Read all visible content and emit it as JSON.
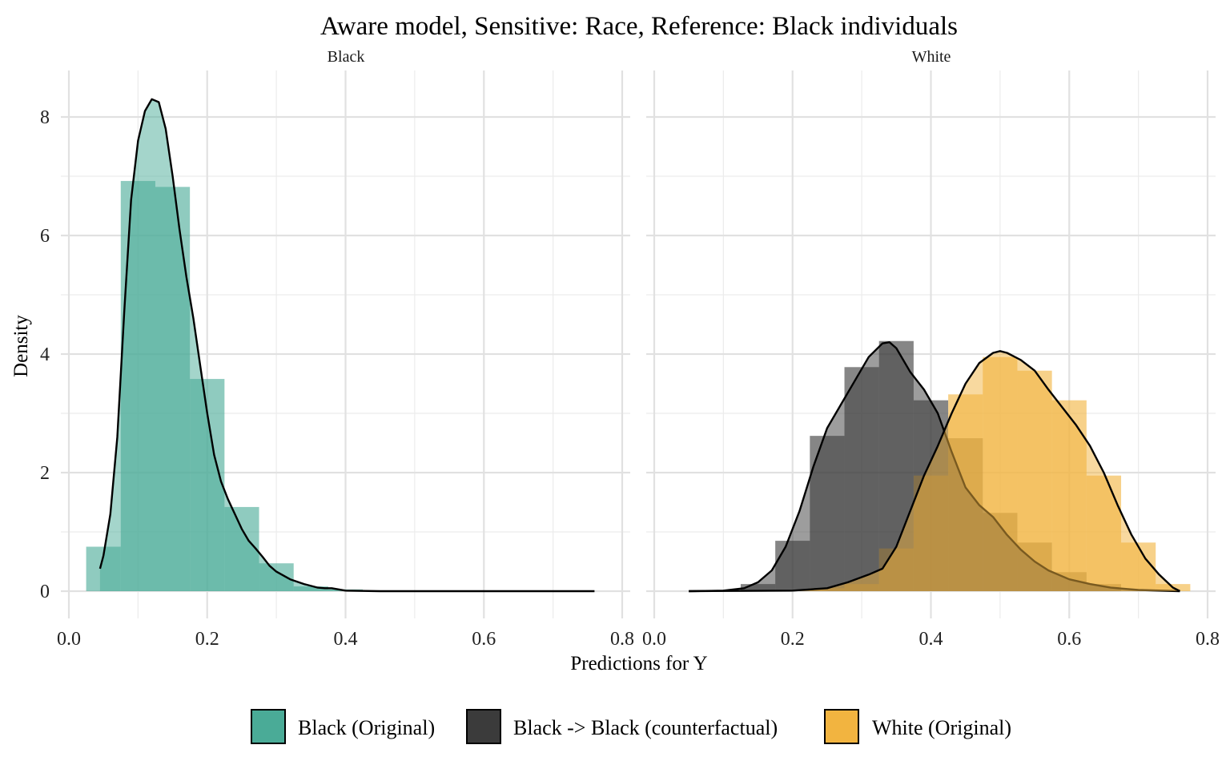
{
  "chart_data": {
    "type": "histogram-density",
    "title": "Aware model, Sensitive: Race, Reference: Black individuals",
    "xlabel": "Predictions for Y",
    "ylabel": "Density",
    "xlim": [
      0.0,
      0.8
    ],
    "ylim": [
      0,
      8.4
    ],
    "x_ticks": [
      0.0,
      0.2,
      0.4,
      0.6,
      0.8
    ],
    "x_tick_labels": [
      "0.0",
      "0.2",
      "0.4",
      "0.6",
      "0.8"
    ],
    "y_ticks": [
      0,
      2,
      4,
      6,
      8
    ],
    "y_tick_labels": [
      "0",
      "2",
      "4",
      "6",
      "8"
    ],
    "grid": true,
    "legend_position": "bottom",
    "bin_width": 0.05,
    "legend": [
      {
        "key": "black_orig",
        "label": "Black (Original)",
        "color": "#4aab97"
      },
      {
        "key": "black_cf",
        "label": "Black -> Black (counterfactual)",
        "color": "#3b3b3b"
      },
      {
        "key": "white_orig",
        "label": "White (Original)",
        "color": "#f2b440"
      }
    ],
    "panels": [
      {
        "name": "Black",
        "series": [
          {
            "key": "black_orig",
            "color": "#4aab97",
            "hist_x_starts": [
              0.025,
              0.075,
              0.125,
              0.175,
              0.225,
              0.275,
              0.325,
              0.375
            ],
            "hist_heights": [
              0.75,
              6.92,
              6.82,
              3.58,
              1.42,
              0.47,
              0.08,
              0.03
            ],
            "density_x": [
              0.045,
              0.05,
              0.06,
              0.07,
              0.08,
              0.09,
              0.1,
              0.11,
              0.12,
              0.13,
              0.14,
              0.15,
              0.16,
              0.17,
              0.18,
              0.19,
              0.2,
              0.21,
              0.22,
              0.23,
              0.24,
              0.25,
              0.26,
              0.27,
              0.28,
              0.29,
              0.3,
              0.32,
              0.34,
              0.36,
              0.37,
              0.38,
              0.4,
              0.45,
              0.5,
              0.6,
              0.7,
              0.76
            ],
            "density_y": [
              0.38,
              0.6,
              1.3,
              2.6,
              4.7,
              6.6,
              7.6,
              8.1,
              8.3,
              8.25,
              7.8,
              7.0,
              6.1,
              5.3,
              4.6,
              3.8,
              3.0,
              2.3,
              1.85,
              1.55,
              1.3,
              1.05,
              0.85,
              0.72,
              0.58,
              0.43,
              0.33,
              0.2,
              0.12,
              0.06,
              0.05,
              0.05,
              0.01,
              0.0,
              0.0,
              0.0,
              0.0,
              0.0
            ]
          }
        ]
      },
      {
        "name": "White",
        "series": [
          {
            "key": "black_cf",
            "color": "#3b3b3b",
            "hist_x_starts": [
              0.125,
              0.175,
              0.225,
              0.275,
              0.325,
              0.375,
              0.425,
              0.475,
              0.525,
              0.575,
              0.625
            ],
            "hist_heights": [
              0.12,
              0.85,
              2.62,
              3.78,
              4.22,
              3.22,
              2.58,
              1.32,
              0.82,
              0.32,
              0.12
            ],
            "density_x": [
              0.05,
              0.1,
              0.13,
              0.15,
              0.17,
              0.19,
              0.21,
              0.23,
              0.25,
              0.27,
              0.29,
              0.31,
              0.33,
              0.34,
              0.35,
              0.37,
              0.39,
              0.41,
              0.43,
              0.45,
              0.47,
              0.49,
              0.51,
              0.53,
              0.55,
              0.57,
              0.6,
              0.63,
              0.66,
              0.7,
              0.76
            ],
            "density_y": [
              0.0,
              0.01,
              0.05,
              0.15,
              0.35,
              0.75,
              1.35,
              2.1,
              2.75,
              3.15,
              3.55,
              3.95,
              4.18,
              4.2,
              4.1,
              3.7,
              3.4,
              3.0,
              2.35,
              1.75,
              1.45,
              1.25,
              0.95,
              0.7,
              0.5,
              0.35,
              0.2,
              0.12,
              0.06,
              0.02,
              0.0
            ]
          },
          {
            "key": "white_orig",
            "color": "#f2b440",
            "hist_x_starts": [
              0.225,
              0.275,
              0.325,
              0.375,
              0.425,
              0.475,
              0.525,
              0.575,
              0.625,
              0.675,
              0.725
            ],
            "hist_heights": [
              0.05,
              0.12,
              0.72,
              1.95,
              3.32,
              3.95,
              3.72,
              3.22,
              1.95,
              0.82,
              0.12
            ],
            "density_x": [
              0.05,
              0.2,
              0.25,
              0.28,
              0.31,
              0.33,
              0.35,
              0.37,
              0.39,
              0.41,
              0.43,
              0.45,
              0.47,
              0.49,
              0.5,
              0.51,
              0.53,
              0.55,
              0.57,
              0.59,
              0.61,
              0.63,
              0.65,
              0.67,
              0.69,
              0.71,
              0.73,
              0.75,
              0.76
            ],
            "density_y": [
              0.0,
              0.01,
              0.05,
              0.15,
              0.28,
              0.38,
              0.75,
              1.35,
              1.95,
              2.45,
              3.0,
              3.5,
              3.85,
              4.02,
              4.05,
              4.02,
              3.9,
              3.72,
              3.4,
              3.1,
              2.8,
              2.45,
              2.0,
              1.45,
              0.95,
              0.55,
              0.28,
              0.06,
              0.0
            ]
          }
        ]
      }
    ]
  }
}
